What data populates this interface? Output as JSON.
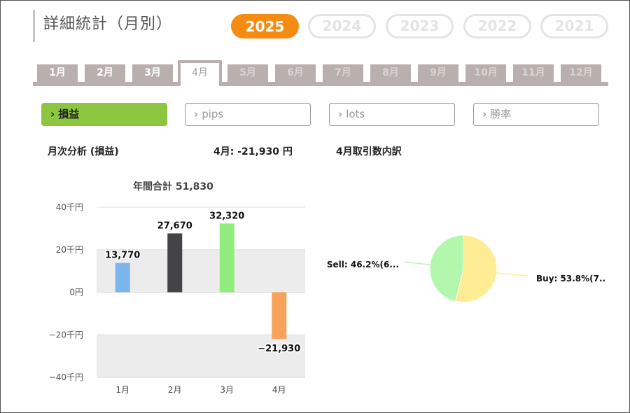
{
  "page": {
    "title": "詳細統計（月別）",
    "years": [
      "2025",
      "2024",
      "2023",
      "2022",
      "2021"
    ],
    "active_year": "2025",
    "months": [
      "1月",
      "2月",
      "3月",
      "4月",
      "5月",
      "6月",
      "7月",
      "8月",
      "9月",
      "10月",
      "11月",
      "12月"
    ],
    "active_month": "4月",
    "metrics": [
      {
        "label": "損益",
        "active": true
      },
      {
        "label": "pips",
        "active": false
      },
      {
        "label": "lots",
        "active": false
      },
      {
        "label": "勝率",
        "active": false
      }
    ],
    "monthly_heading": "月次分析 (損益)",
    "monthly_summary": "4月:  -21,930 円",
    "breakdown_heading": "4月取引数内訳",
    "accent_color": "#f68b12",
    "active_metric_color": "#8cc63f"
  },
  "chart_data": [
    {
      "type": "bar",
      "title": "年間合計 51,830",
      "categories": [
        "1月",
        "2月",
        "3月",
        "4月"
      ],
      "values": [
        13770,
        27670,
        32320,
        -21930
      ],
      "data_labels": [
        "13,770",
        "27,670",
        "32,320",
        "−21,930"
      ],
      "colors": [
        "#7cb5ec",
        "#434348",
        "#90ed7d",
        "#f7a35c"
      ],
      "ylim": [
        -40000,
        40000
      ],
      "yticks": [
        40000,
        20000,
        0,
        -20000,
        -40000
      ],
      "ytick_labels": [
        "40千円",
        "20千円",
        "0円",
        "−20千円",
        "−40千円"
      ],
      "xlabel": "",
      "ylabel": "",
      "grid": "alternating bands"
    },
    {
      "type": "pie",
      "slices": [
        {
          "label": "Buy: 53.8%(7..",
          "percent": 53.8,
          "color": "#ffed95"
        },
        {
          "label": "Sell: 46.2%(6...",
          "percent": 46.2,
          "color": "#b2f7ac"
        }
      ]
    }
  ]
}
